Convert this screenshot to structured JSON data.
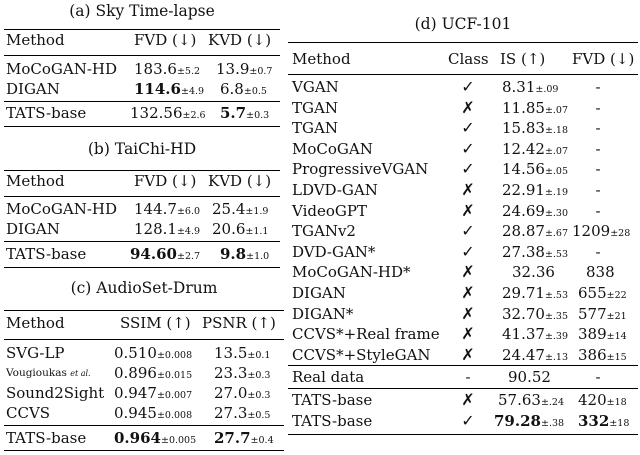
{
  "sky": {
    "caption": "(a) Sky Time-lapse",
    "headers": [
      "Method",
      "FVD (↓)",
      "KVD (↓)"
    ],
    "rows": [
      {
        "method": "MoCoGAN-HD",
        "fvd": "183.6",
        "fvd_pm": "±5.2",
        "kvd": "13.9",
        "kvd_pm": "±0.7"
      },
      {
        "method": "DIGAN",
        "fvd": "114.6",
        "fvd_pm": "±4.9",
        "kvd": "6.8",
        "kvd_pm": "±0.5"
      },
      {
        "method": "TATS-base",
        "fvd": "132.56",
        "fvd_pm": "±2.6",
        "kvd": "5.7",
        "kvd_pm": "±0.3"
      }
    ]
  },
  "taichi": {
    "caption": "(b) TaiChi-HD",
    "headers": [
      "Method",
      "FVD (↓)",
      "KVD (↓)"
    ],
    "rows": [
      {
        "method": "MoCoGAN-HD",
        "fvd": "144.7",
        "fvd_pm": "±6.0",
        "kvd": "25.4",
        "kvd_pm": "±1.9"
      },
      {
        "method": "DIGAN",
        "fvd": "128.1",
        "fvd_pm": "±4.9",
        "kvd": "20.6",
        "kvd_pm": "±1.1"
      },
      {
        "method": "TATS-base",
        "fvd": "94.60",
        "fvd_pm": "±2.7",
        "kvd": "9.8",
        "kvd_pm": "±1.0"
      }
    ]
  },
  "audio": {
    "caption": "(c) AudioSet-Drum",
    "headers": [
      "Method",
      "SSIM (↑)",
      "PSNR (↑)"
    ],
    "rows": [
      {
        "method": "SVG-LP",
        "ssim": "0.510",
        "ssim_pm": "±0.008",
        "psnr": "13.5",
        "psnr_pm": "±0.1"
      },
      {
        "method": "Vougioukas",
        "method_suffix": "et al.",
        "ssim": "0.896",
        "ssim_pm": "±0.015",
        "psnr": "23.3",
        "psnr_pm": "±0.3"
      },
      {
        "method": "Sound2Sight",
        "ssim": "0.947",
        "ssim_pm": "±0.007",
        "psnr": "27.0",
        "psnr_pm": "±0.3"
      },
      {
        "method": "CCVS",
        "ssim": "0.945",
        "ssim_pm": "±0.008",
        "psnr": "27.3",
        "psnr_pm": "±0.5"
      },
      {
        "method": "TATS-base",
        "ssim": "0.964",
        "ssim_pm": "±0.005",
        "psnr": "27.7",
        "psnr_pm": "±0.4"
      }
    ]
  },
  "ucf": {
    "caption": "(d) UCF-101",
    "headers": [
      "Method",
      "Class",
      "IS (↑)",
      "FVD (↓)"
    ],
    "rows": [
      {
        "method": "VGAN",
        "cls": "✓",
        "is": "8.31",
        "is_pm": "±.09",
        "fvd": "-",
        "fvd_pm": ""
      },
      {
        "method": "TGAN",
        "cls": "✗",
        "is": "11.85",
        "is_pm": "±.07",
        "fvd": "-",
        "fvd_pm": ""
      },
      {
        "method": "TGAN",
        "cls": "✓",
        "is": "15.83",
        "is_pm": "±.18",
        "fvd": "-",
        "fvd_pm": ""
      },
      {
        "method": "MoCoGAN",
        "cls": "✓",
        "is": "12.42",
        "is_pm": "±.07",
        "fvd": "-",
        "fvd_pm": ""
      },
      {
        "method": "ProgressiveVGAN",
        "cls": "✓",
        "is": "14.56",
        "is_pm": "±.05",
        "fvd": "-",
        "fvd_pm": ""
      },
      {
        "method": "LDVD-GAN",
        "cls": "✗",
        "is": "22.91",
        "is_pm": "±.19",
        "fvd": "-",
        "fvd_pm": ""
      },
      {
        "method": "VideoGPT",
        "cls": "✗",
        "is": "24.69",
        "is_pm": "±.30",
        "fvd": "-",
        "fvd_pm": ""
      },
      {
        "method": "TGANv2",
        "cls": "✓",
        "is": "28.87",
        "is_pm": "±.67",
        "fvd": "1209",
        "fvd_pm": "±28"
      },
      {
        "method": "DVD-GAN*",
        "cls": "✓",
        "is": "27.38",
        "is_pm": "±.53",
        "fvd": "-",
        "fvd_pm": ""
      },
      {
        "method": "MoCoGAN-HD*",
        "cls": "✗",
        "is": "32.36",
        "is_pm": "",
        "fvd": "838",
        "fvd_pm": ""
      },
      {
        "method": "DIGAN",
        "cls": "✗",
        "is": "29.71",
        "is_pm": "±.53",
        "fvd": "655",
        "fvd_pm": "±22"
      },
      {
        "method": "DIGAN*",
        "cls": "✗",
        "is": "32.70",
        "is_pm": "±.35",
        "fvd": "577",
        "fvd_pm": "±21"
      },
      {
        "method": "CCVS*+Real frame",
        "cls": "✗",
        "is": "41.37",
        "is_pm": "±.39",
        "fvd": "389",
        "fvd_pm": "±14"
      },
      {
        "method": "CCVS*+StyleGAN",
        "cls": "✗",
        "is": "24.47",
        "is_pm": "±.13",
        "fvd": "386",
        "fvd_pm": "±15"
      }
    ],
    "real": {
      "method": "Real data",
      "cls": "-",
      "is": "90.52",
      "fvd": "-"
    },
    "tats": [
      {
        "method": "TATS-base",
        "cls": "✗",
        "is": "57.63",
        "is_pm": "±.24",
        "fvd": "420",
        "fvd_pm": "±18"
      },
      {
        "method": "TATS-base",
        "cls": "✓",
        "is": "79.28",
        "is_pm": "±.38",
        "fvd": "332",
        "fvd_pm": "±18"
      }
    ]
  }
}
